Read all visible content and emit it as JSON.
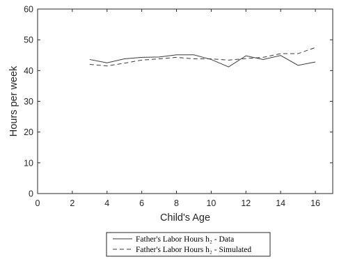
{
  "chart_data": {
    "type": "line",
    "title": "",
    "xlabel": "Child's Age",
    "ylabel": "Hours per week",
    "xlim": [
      0,
      17
    ],
    "ylim": [
      0,
      60
    ],
    "xticks": [
      0,
      2,
      4,
      6,
      8,
      10,
      12,
      14,
      16
    ],
    "yticks": [
      0,
      10,
      20,
      30,
      40,
      50,
      60
    ],
    "grid": false,
    "legend_position": "bottom-center-outside",
    "x": [
      3,
      4,
      5,
      6,
      7,
      8,
      9,
      10,
      11,
      12,
      13,
      14,
      15,
      16
    ],
    "series": [
      {
        "name": "Father's Labor Hours h₂ - Data",
        "style": "solid",
        "color": "#3a3a3a",
        "values": [
          43.6,
          42.5,
          43.8,
          44.3,
          44.4,
          45.1,
          45.1,
          43.6,
          41.2,
          44.8,
          43.6,
          44.9,
          41.7,
          42.8
        ]
      },
      {
        "name": "Father's Labor Hours h₂ - Simulated",
        "style": "dashed",
        "color": "#3a3a3a",
        "values": [
          42.0,
          41.5,
          42.4,
          43.4,
          43.8,
          44.3,
          43.8,
          43.8,
          43.4,
          43.9,
          44.3,
          45.5,
          45.5,
          47.5
        ]
      }
    ]
  }
}
